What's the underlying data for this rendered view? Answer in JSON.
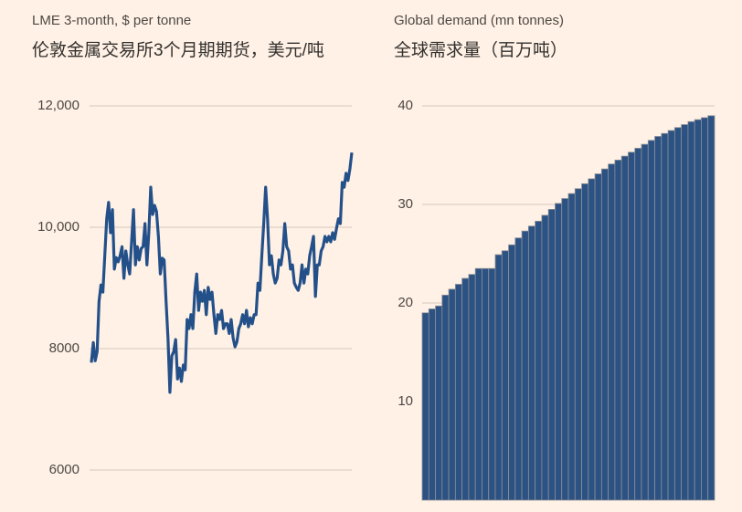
{
  "chart_data": [
    {
      "type": "line",
      "subtitle": "LME 3-month, $ per tonne",
      "title": "伦敦金属交易所3个月期期货，美元/吨",
      "color": "#24508a",
      "grid": true,
      "ylim": [
        6000,
        12000
      ],
      "yticks": [
        6000,
        8000,
        {
          "value": 10000,
          "label": "10,000"
        },
        {
          "value": 12000,
          "label": "12,000"
        }
      ],
      "values": [
        7770,
        8100,
        7800,
        7950,
        8780,
        9050,
        8930,
        9530,
        10140,
        10410,
        9910,
        10290,
        9310,
        9500,
        9430,
        9530,
        9680,
        9160,
        9610,
        9380,
        9230,
        9760,
        10290,
        9380,
        9680,
        9460,
        9650,
        9680,
        10060,
        9380,
        9910,
        10660,
        10210,
        10360,
        10260,
        9850,
        9230,
        9490,
        9460,
        8780,
        8180,
        7280,
        7880,
        7950,
        8150,
        7500,
        7680,
        7460,
        7730,
        7650,
        8480,
        8330,
        8560,
        8330,
        8930,
        9230,
        8630,
        8930,
        8780,
        8960,
        8560,
        9010,
        8810,
        8930,
        8560,
        8250,
        8560,
        8480,
        8630,
        8330,
        8410,
        8410,
        8250,
        8480,
        8180,
        8030,
        8110,
        8330,
        8410,
        8560,
        8410,
        8630,
        8360,
        8510,
        8410,
        8560,
        8560,
        9080,
        8960,
        9530,
        10060,
        10660,
        10140,
        9380,
        9530,
        9230,
        9080,
        9160,
        9460,
        9380,
        9610,
        10060,
        9680,
        9610,
        9310,
        9380,
        9080,
        9010,
        8960,
        9080,
        9380,
        9080,
        9310,
        9230,
        9530,
        9680,
        9850,
        8860,
        9380,
        9380,
        9610,
        9680,
        9850,
        9760,
        9850,
        9760,
        9910,
        9800,
        9980,
        10140,
        10060,
        10740,
        10660,
        10890,
        10770,
        10960,
        11230
      ]
    },
    {
      "type": "bar",
      "subtitle": "Global demand (mn tonnes)",
      "title": "全球需求量（百万吨）",
      "color": "#2b5283",
      "grid": true,
      "ylim": [
        0,
        40
      ],
      "yticks": [
        10,
        20,
        30,
        40
      ],
      "categories": [
        null,
        null,
        null,
        null,
        null,
        null,
        null,
        null,
        null,
        null,
        null,
        null,
        null,
        null,
        null,
        null,
        null,
        null,
        null,
        null,
        null,
        null,
        null,
        null,
        null,
        null,
        null,
        null,
        null,
        null,
        null,
        null,
        null,
        null,
        null,
        null,
        null,
        null,
        null,
        null,
        null,
        null,
        null,
        null
      ],
      "values": [
        19.0,
        19.4,
        19.7,
        20.8,
        21.4,
        21.9,
        22.5,
        22.9,
        23.5,
        23.5,
        23.5,
        24.9,
        25.3,
        25.9,
        26.6,
        27.3,
        27.8,
        28.3,
        28.9,
        29.5,
        30.1,
        30.6,
        31.1,
        31.6,
        32.1,
        32.6,
        33.1,
        33.6,
        34.1,
        34.5,
        34.9,
        35.3,
        35.7,
        36.1,
        36.5,
        36.9,
        37.2,
        37.5,
        37.8,
        38.1,
        38.4,
        38.6,
        38.8,
        39.0
      ]
    }
  ]
}
